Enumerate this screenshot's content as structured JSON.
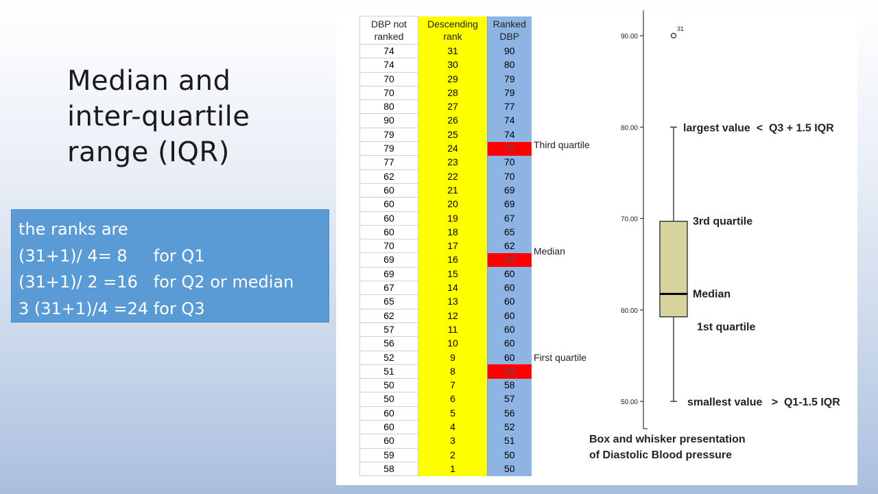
{
  "slide": {
    "title": "Median and\ninter-quartile\nrange (IQR)"
  },
  "ranks_box": {
    "lines": [
      "the ranks are",
      "(31+1)/ 4= 8     for Q1",
      "(31+1)/ 2 =16   for Q2 or median",
      "3 (31+1)/4 =24 for Q3"
    ],
    "background": "#5b9bd5"
  },
  "table": {
    "headers": [
      "DBP not\nranked",
      "Descending\nrank",
      "Ranked\nDBP"
    ],
    "unranked": [
      "74",
      "74",
      "70",
      "70",
      "80",
      "90",
      "79",
      "79",
      "77",
      "62",
      "60",
      "60",
      "60",
      "60",
      "70",
      "69",
      "69",
      "67",
      "65",
      "62",
      "57",
      "56",
      "52",
      "51",
      "50",
      "50",
      "60",
      "60",
      "60",
      "59",
      "58"
    ],
    "rank": [
      "31",
      "30",
      "29",
      "28",
      "27",
      "26",
      "25",
      "24",
      "23",
      "22",
      "21",
      "20",
      "19",
      "18",
      "17",
      "16",
      "15",
      "14",
      "13",
      "12",
      "11",
      "10",
      "9",
      "8",
      "7",
      "6",
      "5",
      "4",
      "3",
      "2",
      "1"
    ],
    "ranked": [
      "90",
      "80",
      "79",
      "79",
      "77",
      "74",
      "74",
      "70",
      "70",
      "70",
      "69",
      "69",
      "67",
      "65",
      "62",
      "62",
      "60",
      "60",
      "60",
      "60",
      "60",
      "60",
      "60",
      "59",
      "58",
      "57",
      "56",
      "52",
      "51",
      "50",
      "50"
    ],
    "highlight_rows": [
      7,
      15,
      23
    ],
    "quartile_labels": [
      "Third quartile",
      "Median",
      "First quartile"
    ],
    "colors": {
      "rank_column": "#ffff00",
      "ranked_column": "#8eb4e3",
      "highlight": "#ff0000"
    }
  },
  "chart_data": {
    "type": "box",
    "title": "Box and whisker presentation\nof Diastolic Blood pressure",
    "y_ticks": [
      "50.00",
      "60.00",
      "70.00",
      "80.00",
      "90.00"
    ],
    "ylim": [
      47,
      95
    ],
    "box": {
      "min": 50,
      "q1": 59.25,
      "median": 61.75,
      "q3": 69.7,
      "max": 80
    },
    "outliers": [
      {
        "value": 90,
        "label": "31"
      }
    ],
    "annotations": {
      "max": "largest value  <  Q3 + 1.5 IQR",
      "q3": "3rd quartile",
      "median": "Median",
      "q1": "1st quartile",
      "min": "smallest value   >  Q1-1.5 IQR"
    },
    "box_color": "#d6d39c"
  }
}
